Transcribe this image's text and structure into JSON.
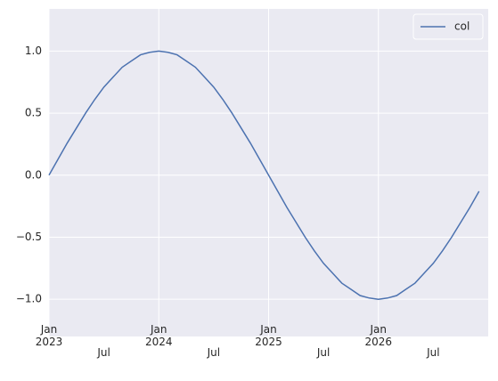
{
  "chart_data": {
    "type": "line",
    "x": [
      "2023-01",
      "2023-02",
      "2023-03",
      "2023-04",
      "2023-05",
      "2023-06",
      "2023-07",
      "2023-08",
      "2023-09",
      "2023-10",
      "2023-11",
      "2023-12",
      "2024-01",
      "2024-02",
      "2024-03",
      "2024-04",
      "2024-05",
      "2024-06",
      "2024-07",
      "2024-08",
      "2024-09",
      "2024-10",
      "2024-11",
      "2024-12",
      "2025-01",
      "2025-02",
      "2025-03",
      "2025-04",
      "2025-05",
      "2025-06",
      "2025-07",
      "2025-08",
      "2025-09",
      "2025-10",
      "2025-11",
      "2025-12",
      "2026-01",
      "2026-02",
      "2026-03",
      "2026-04",
      "2026-05",
      "2026-06",
      "2026-07",
      "2026-08",
      "2026-09",
      "2026-10",
      "2026-11",
      "2026-12"
    ],
    "series": [
      {
        "name": "col",
        "color": "#4c72b0",
        "values": [
          0,
          0.13,
          0.26,
          0.38,
          0.5,
          0.61,
          0.71,
          0.79,
          0.87,
          0.92,
          0.97,
          0.99,
          1,
          0.99,
          0.97,
          0.92,
          0.87,
          0.79,
          0.71,
          0.61,
          0.5,
          0.38,
          0.26,
          0.13,
          0,
          -0.13,
          -0.26,
          -0.38,
          -0.5,
          -0.61,
          -0.71,
          -0.79,
          -0.87,
          -0.92,
          -0.97,
          -0.99,
          -1,
          -0.99,
          -0.97,
          -0.92,
          -0.87,
          -0.79,
          -0.71,
          -0.61,
          -0.5,
          -0.38,
          -0.26,
          -0.13
        ]
      }
    ],
    "xlim": [
      "2023-01",
      "2026-12"
    ],
    "ylim": [
      -1.3,
      1.34
    ],
    "yticks": [
      {
        "value": -1,
        "label": "−1.0"
      },
      {
        "value": -0.5,
        "label": "−0.5"
      },
      {
        "value": 0,
        "label": "0.0"
      },
      {
        "value": 0.5,
        "label": "0.5"
      },
      {
        "value": 1,
        "label": "1.0"
      }
    ],
    "xticks": [
      {
        "value": "2023-01",
        "label": "Jan 2023"
      },
      {
        "value": "2023-07",
        "label": "Jul"
      },
      {
        "value": "2024-01",
        "label": "Jan 2024"
      },
      {
        "value": "2024-07",
        "label": "Jul"
      },
      {
        "value": "2025-01",
        "label": "Jan 2025"
      },
      {
        "value": "2025-07",
        "label": "Jul"
      },
      {
        "value": "2026-01",
        "label": "Jan 2026"
      },
      {
        "value": "2026-07",
        "label": "Jul"
      }
    ],
    "grid": true,
    "legend": "upper right",
    "background": "#eaeaf2"
  }
}
